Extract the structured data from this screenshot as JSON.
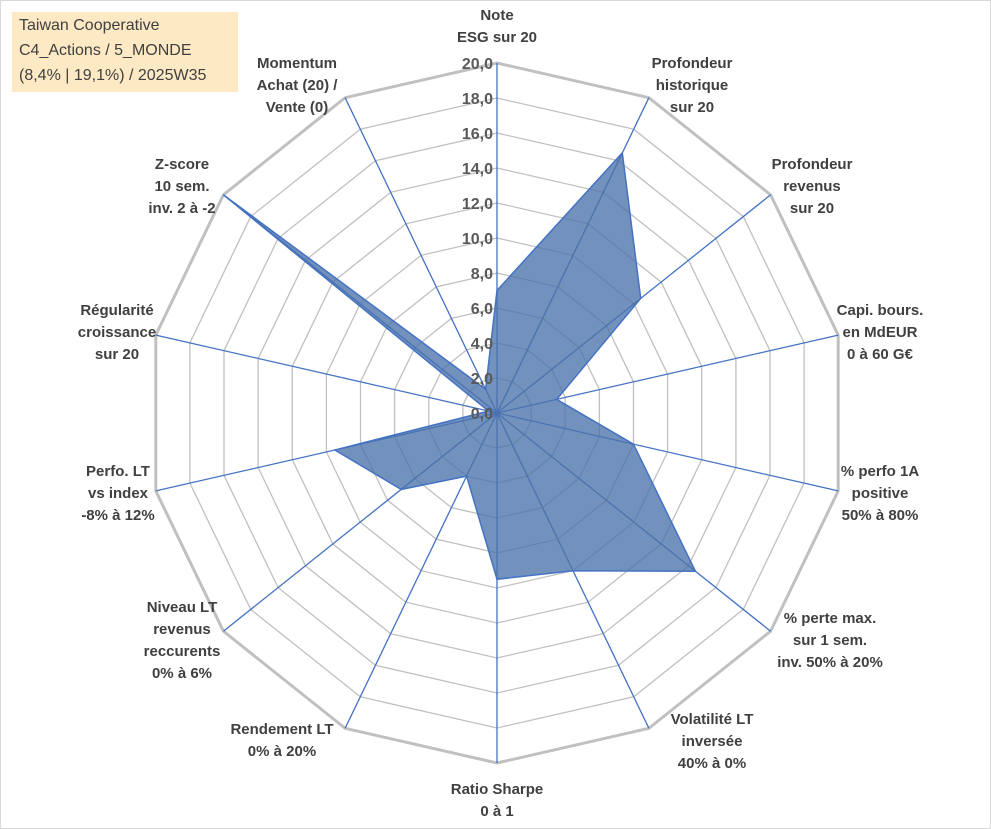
{
  "title_lines": [
    "Taiwan Cooperative",
    "C4_Actions / 5_MONDE",
    "(8,4% | 19,1%) / 2025W35"
  ],
  "colors": {
    "fill": "#4a72aa",
    "stroke": "#4472c4",
    "grid": "#c0c0c0",
    "title_bg": "#fde9c4"
  },
  "chart_data": {
    "type": "radar",
    "range": [
      0,
      20
    ],
    "tick_step": 2,
    "ticks": [
      "0,0",
      "2,0",
      "4,0",
      "6,0",
      "8,0",
      "10,0",
      "12,0",
      "14,0",
      "16,0",
      "18,0",
      "20,0"
    ],
    "grid": true,
    "axes": [
      {
        "label": [
          "Note",
          "ESG sur 20"
        ],
        "value": 7.0
      },
      {
        "label": [
          "Profondeur",
          "historique",
          "sur 20"
        ],
        "value": 16.5
      },
      {
        "label": [
          "Profondeur",
          "revenus",
          "sur 20"
        ],
        "value": 10.5
      },
      {
        "label": [
          "Capi. bours.",
          "en MdEUR",
          "0 à 60 G€"
        ],
        "value": 3.5
      },
      {
        "label": [
          "% perfo 1A",
          "positive",
          "50% à 80%"
        ],
        "value": 8.0
      },
      {
        "label": [
          "% perte max.",
          "sur 1 sem.",
          "inv. 50% à 20%"
        ],
        "value": 14.5
      },
      {
        "label": [
          "Volatilité LT",
          "inversée",
          "40% à 0%"
        ],
        "value": 10.0
      },
      {
        "label": [
          "Ratio Sharpe",
          "0 à 1"
        ],
        "value": 9.5
      },
      {
        "label": [
          "Rendement LT",
          "0% à 20%"
        ],
        "value": 4.0
      },
      {
        "label": [
          "Niveau LT",
          "revenus",
          "reccurents",
          "0% à 6%"
        ],
        "value": 7.0
      },
      {
        "label": [
          "Perfo. LT",
          "vs index",
          "-8% à 12%"
        ],
        "value": 9.5
      },
      {
        "label": [
          "Régularité",
          "croissance",
          "sur 20"
        ],
        "value": 0.5
      },
      {
        "label": [
          "Z-score",
          "10 sem.",
          "inv. 2 à -2"
        ],
        "value": 20.0
      },
      {
        "label": [
          "Momentum",
          "Achat (20) /",
          "Vente (0)"
        ],
        "value": 1.5
      }
    ]
  }
}
